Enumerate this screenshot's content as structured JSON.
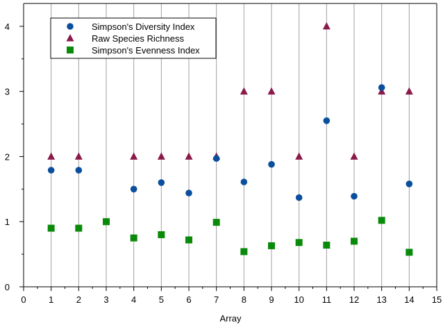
{
  "chart_data": {
    "type": "scatter",
    "xlabel": "Array",
    "ylabel": "",
    "xlim": [
      0,
      15
    ],
    "ylim": [
      0,
      4.35
    ],
    "x_ticks": [
      "0",
      "1",
      "2",
      "3",
      "4",
      "5",
      "6",
      "7",
      "8",
      "9",
      "10",
      "11",
      "12",
      "13",
      "14",
      "15"
    ],
    "y_ticks": [
      "0",
      "1",
      "2",
      "3",
      "4"
    ],
    "grid": "vertical lines at each array",
    "legend_position": "top-left",
    "series": [
      {
        "name": "Simpson's Diversity Index",
        "marker": "circle",
        "color": "#0a4f9e",
        "points": [
          {
            "x": 1,
            "y": 1.79
          },
          {
            "x": 2,
            "y": 1.79
          },
          {
            "x": 4,
            "y": 1.5
          },
          {
            "x": 5,
            "y": 1.6
          },
          {
            "x": 6,
            "y": 1.44
          },
          {
            "x": 7,
            "y": 1.97
          },
          {
            "x": 8,
            "y": 1.61
          },
          {
            "x": 9,
            "y": 1.88
          },
          {
            "x": 10,
            "y": 1.37
          },
          {
            "x": 11,
            "y": 2.55
          },
          {
            "x": 12,
            "y": 1.39
          },
          {
            "x": 13,
            "y": 3.06
          },
          {
            "x": 14,
            "y": 1.58
          }
        ]
      },
      {
        "name": "Raw Species Richness",
        "marker": "triangle",
        "color": "#8b1a4a",
        "points": [
          {
            "x": 1,
            "y": 2
          },
          {
            "x": 2,
            "y": 2
          },
          {
            "x": 4,
            "y": 2
          },
          {
            "x": 5,
            "y": 2
          },
          {
            "x": 6,
            "y": 2
          },
          {
            "x": 7,
            "y": 2
          },
          {
            "x": 8,
            "y": 3
          },
          {
            "x": 9,
            "y": 3
          },
          {
            "x": 10,
            "y": 2
          },
          {
            "x": 11,
            "y": 4
          },
          {
            "x": 12,
            "y": 2
          },
          {
            "x": 13,
            "y": 3
          },
          {
            "x": 14,
            "y": 3
          }
        ]
      },
      {
        "name": "Simpson's Evenness Index",
        "marker": "square",
        "color": "#0a8a0a",
        "points": [
          {
            "x": 1,
            "y": 0.9
          },
          {
            "x": 2,
            "y": 0.9
          },
          {
            "x": 3,
            "y": 1.0
          },
          {
            "x": 4,
            "y": 0.75
          },
          {
            "x": 5,
            "y": 0.8
          },
          {
            "x": 6,
            "y": 0.72
          },
          {
            "x": 7,
            "y": 0.99
          },
          {
            "x": 8,
            "y": 0.54
          },
          {
            "x": 9,
            "y": 0.63
          },
          {
            "x": 10,
            "y": 0.68
          },
          {
            "x": 11,
            "y": 0.64
          },
          {
            "x": 12,
            "y": 0.7
          },
          {
            "x": 13,
            "y": 1.02
          },
          {
            "x": 14,
            "y": 0.53
          }
        ]
      }
    ]
  }
}
